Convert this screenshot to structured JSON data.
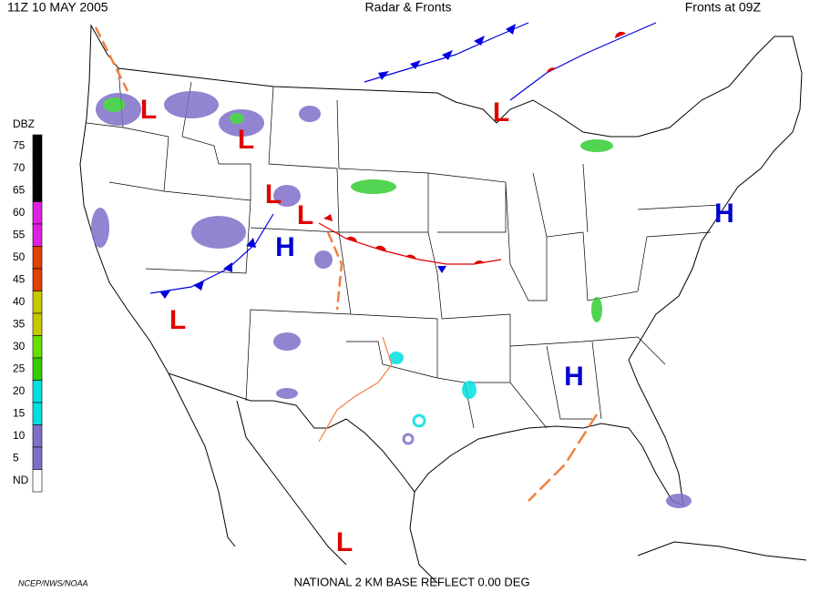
{
  "header": {
    "left": "11Z  10 MAY  2005",
    "center": "Radar & Fronts",
    "right": "Fronts at 09Z"
  },
  "legend": {
    "title": "DBZ",
    "labels": [
      "75",
      "70",
      "65",
      "60",
      "55",
      "50",
      "45",
      "40",
      "35",
      "30",
      "25",
      "20",
      "15",
      "10",
      "5",
      "ND"
    ],
    "colors": [
      "#000000",
      "#000000",
      "#000000",
      "#e020e0",
      "#e020e0",
      "#e04000",
      "#e04000",
      "#c8c800",
      "#c8c800",
      "#66e000",
      "#33cc00",
      "#00e0e0",
      "#00e0e0",
      "#7f6fc8",
      "#7f6fc8",
      "#ffffff"
    ]
  },
  "pressure_centers": [
    "L",
    "L",
    "L",
    "L",
    "L",
    "L",
    "L",
    "H",
    "H",
    "H"
  ],
  "footer": {
    "left": "NCEP/NWS/NOAA",
    "center": "NATIONAL 2 KM BASE REFLECT 0.00 DEG"
  }
}
